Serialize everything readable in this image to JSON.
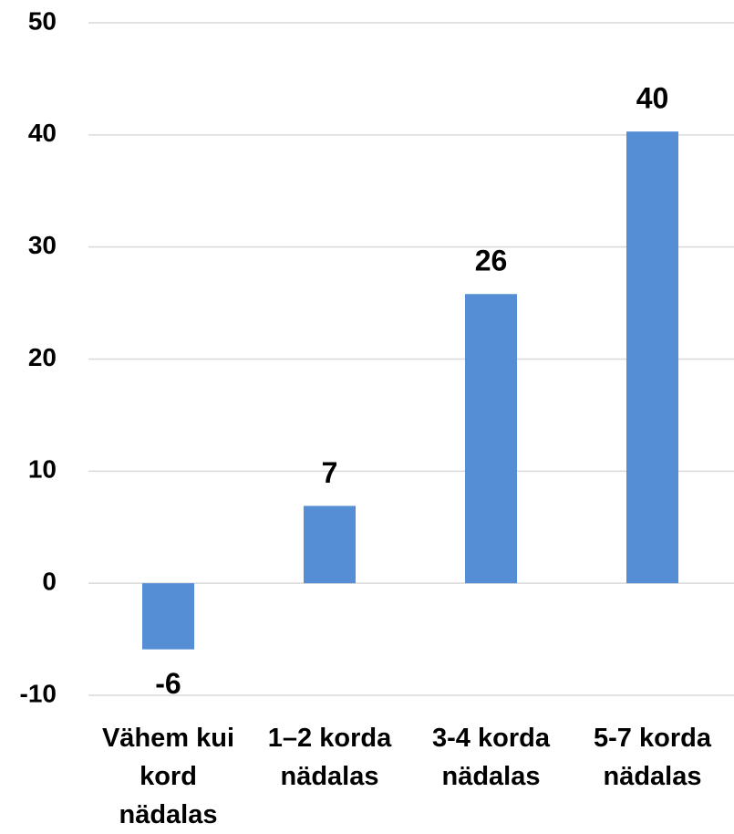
{
  "chart_data": {
    "type": "bar",
    "categories": [
      "Vähem kui kord nädalas",
      "1–2 korda nädalas",
      "3-4 korda nädalas",
      "5-7 korda nädalas"
    ],
    "values": [
      -5.9,
      6.9,
      25.8,
      40.3
    ],
    "value_labels": [
      "-6",
      "7",
      "26",
      "40"
    ],
    "color": "#558ed5",
    "ylim": [
      -10,
      50
    ],
    "yticks": [
      -10,
      0,
      10,
      20,
      30,
      40,
      50
    ],
    "grid": true
  }
}
